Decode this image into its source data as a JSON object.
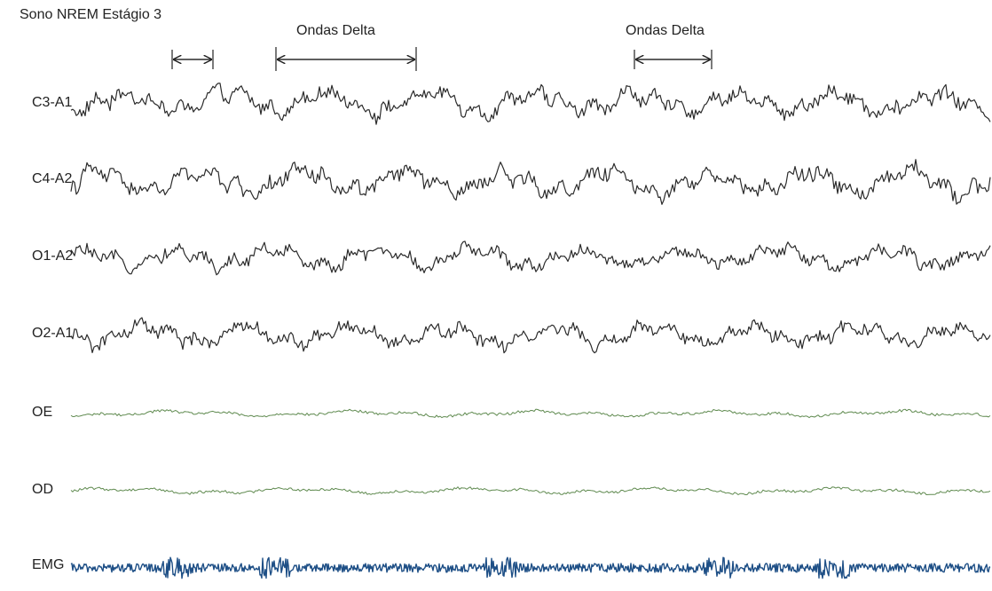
{
  "title": "Sono NREM Estágio 3",
  "annotations": [
    {
      "id": "a1",
      "label": ""
    },
    {
      "id": "a2",
      "label": "Ondas Delta"
    },
    {
      "id": "a3",
      "label": "Ondas Delta"
    }
  ],
  "channels": [
    {
      "name": "C3-A1",
      "color": "#2b2b2b"
    },
    {
      "name": "C4-A2",
      "color": "#2b2b2b"
    },
    {
      "name": "O1-A2",
      "color": "#2b2b2b"
    },
    {
      "name": "O2-A1",
      "color": "#2b2b2b"
    },
    {
      "name": "OE",
      "color": "#5f8a4f"
    },
    {
      "name": "OD",
      "color": "#5f8a4f"
    },
    {
      "name": "EMG",
      "color": "#1e4f86"
    }
  ]
}
